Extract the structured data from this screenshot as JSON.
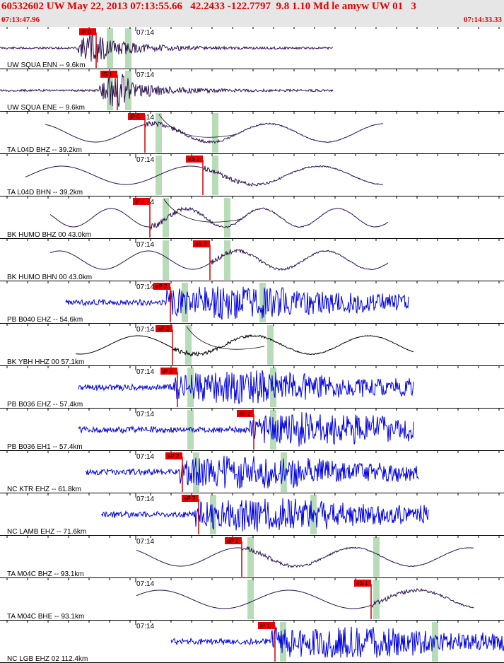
{
  "header": {
    "title": "60532602 UW May 22, 2013 07:13:55.66   42.2433 -122.7797  9.8 1.10 Md le amyw UW 01   3",
    "start_time": "07:13:47.96",
    "end_time": "07:14:33.33"
  },
  "time_mark": "07:14",
  "colors": {
    "header_bg": "#e6e6e6",
    "header_text": "#e00000",
    "trace_dark": "#2a1050",
    "trace_blue": "#0000e0",
    "trace_black": "#000000",
    "pick_box": "#ee0000",
    "pick_window": "#b8dcb8",
    "pick_line": "#cc0000"
  },
  "traces": [
    {
      "label": "UW SQUA ENN -- 9.6km",
      "pick": "iP 0",
      "pick_pos": 0.191,
      "green": [
        0.218,
        0.254
      ],
      "start": 0.0,
      "end": 0.66,
      "kind": "burst",
      "color": "trace_dark",
      "seed": 11
    },
    {
      "label": "UW SQUA ENE -- 9.6km",
      "pick": "iS 1",
      "pick_pos": 0.233,
      "green": [
        0.218,
        0.254
      ],
      "start": 0.0,
      "end": 0.66,
      "kind": "burst",
      "color": "trace_dark",
      "seed": 12
    },
    {
      "label": "TA L04D BHZ -- 39.2km",
      "pick": "iP 0",
      "pick_pos": 0.288,
      "green": [
        0.314,
        0.427
      ],
      "start": 0.09,
      "end": 0.76,
      "kind": "wave",
      "color": "trace_dark",
      "seed": 13,
      "curve": true
    },
    {
      "label": "TA L04D BHN -- 39.2km",
      "pick": "eS 2",
      "pick_pos": 0.402,
      "green": [
        0.314,
        0.427
      ],
      "start": 0.05,
      "end": 0.76,
      "kind": "wave",
      "color": "trace_dark",
      "seed": 14
    },
    {
      "label": "BK HUMO BHZ 00 43.0km",
      "pick": "iP 1",
      "pick_pos": 0.298,
      "green": [
        0.328,
        0.45
      ],
      "start": 0.1,
      "end": 0.77,
      "kind": "wave",
      "color": "trace_dark",
      "seed": 15,
      "curve": true
    },
    {
      "label": "BK HUMO BHN 00 43.0km",
      "pick": "eS 2",
      "pick_pos": 0.417,
      "green": [
        0.328,
        0.45
      ],
      "start": 0.1,
      "end": 0.77,
      "kind": "wave",
      "color": "trace_dark",
      "seed": 16
    },
    {
      "label": "PB B040 EHZ -- 54.6km",
      "pick": "eP 2",
      "pick_pos": 0.338,
      "green": [
        0.366,
        0.52
      ],
      "start": 0.13,
      "end": 0.81,
      "kind": "noise",
      "color": "trace_blue",
      "seed": 17
    },
    {
      "label": "BK YBH HHZ 00 57.1km",
      "pick": "eP 2",
      "pick_pos": 0.342,
      "green": [
        0.373,
        0.536
      ],
      "start": 0.15,
      "end": 0.82,
      "kind": "wave",
      "color": "trace_black",
      "seed": 18,
      "curve": true
    },
    {
      "label": "PB B036 EHZ -- 57.4km",
      "pick": "iP 0",
      "pick_pos": 0.352,
      "green": [
        0.377,
        0.542
      ],
      "start": 0.155,
      "end": 0.82,
      "kind": "noise",
      "color": "trace_blue",
      "seed": 19
    },
    {
      "label": "PB B036 EH1 -- 57.4km",
      "pick": "eS 2",
      "pick_pos": 0.504,
      "green": [
        0.377,
        0.542
      ],
      "start": 0.155,
      "end": 0.82,
      "kind": "noise",
      "color": "trace_blue",
      "seed": 20
    },
    {
      "label": "NC KTR EHZ -- 61.8km",
      "pick": "eP 2",
      "pick_pos": 0.362,
      "green": [
        0.389,
        0.563
      ],
      "start": 0.17,
      "end": 0.83,
      "kind": "noise",
      "color": "trace_blue",
      "seed": 21
    },
    {
      "label": "NC LAMB EHZ -- 71.6km",
      "pick": "eP 2",
      "pick_pos": 0.394,
      "green": [
        0.422,
        0.622
      ],
      "start": 0.2,
      "end": 0.85,
      "kind": "noise",
      "color": "trace_blue",
      "seed": 22
    },
    {
      "label": "TA M04C BHZ -- 93.1km",
      "pick": "eP 2",
      "pick_pos": 0.48,
      "green": [
        0.496,
        0.746
      ],
      "start": 0.27,
      "end": 0.94,
      "kind": "wave",
      "color": "trace_dark",
      "seed": 23
    },
    {
      "label": "TA M04C BHE -- 93.1km",
      "pick": "eS 1",
      "pick_pos": 0.736,
      "green": [
        0.496,
        0.746
      ],
      "start": 0.27,
      "end": 0.94,
      "kind": "wave",
      "color": "trace_dark",
      "seed": 24
    },
    {
      "label": "NC LGB EHZ 02 112.4km",
      "pick": "iP 1",
      "pick_pos": 0.546,
      "green": [
        0.561,
        0.862
      ],
      "start": 0.34,
      "end": 1.0,
      "kind": "noise",
      "color": "trace_blue",
      "seed": 25
    }
  ]
}
